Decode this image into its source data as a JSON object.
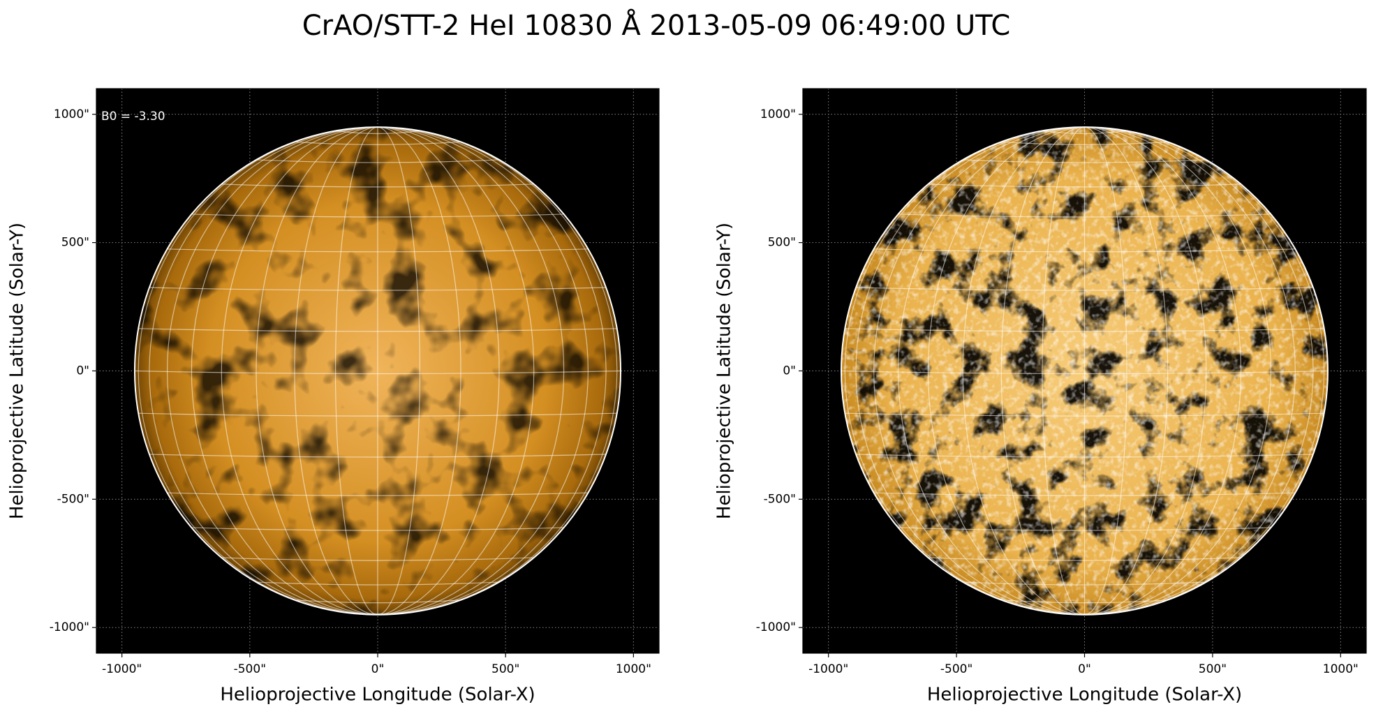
{
  "title": "CrAO/STT-2 HeI 10830 Å 2013-05-09 06:49:00 UTC",
  "chart_data": [
    {
      "type": "image",
      "annotation": "B0 = -3.30",
      "xlabel": "Helioprojective Longitude (Solar-X)",
      "ylabel": "Helioprojective Latitude (Solar-Y)",
      "xlim": [
        -1100,
        1100
      ],
      "ylim": [
        -1100,
        1100
      ],
      "xticks": [
        {
          "value": -1000,
          "label": "-1000\""
        },
        {
          "value": -500,
          "label": "-500\""
        },
        {
          "value": 0,
          "label": "0\""
        },
        {
          "value": 500,
          "label": "500\""
        },
        {
          "value": 1000,
          "label": "1000\""
        }
      ],
      "yticks": [
        {
          "value": -1000,
          "label": "-1000\""
        },
        {
          "value": -500,
          "label": "-500\""
        },
        {
          "value": 0,
          "label": "0\""
        },
        {
          "value": 500,
          "label": "500\""
        },
        {
          "value": 1000,
          "label": "1000\""
        }
      ],
      "grid": true,
      "solar_radius": 950
    },
    {
      "type": "image",
      "xlabel": "Helioprojective Longitude (Solar-X)",
      "ylabel": "Helioprojective Latitude (Solar-Y)",
      "xlim": [
        -1100,
        1100
      ],
      "ylim": [
        -1100,
        1100
      ],
      "xticks": [
        {
          "value": -1000,
          "label": "-1000\""
        },
        {
          "value": -500,
          "label": "-500\""
        },
        {
          "value": 0,
          "label": "0\""
        },
        {
          "value": 500,
          "label": "500\""
        },
        {
          "value": 1000,
          "label": "1000\""
        }
      ],
      "yticks": [
        {
          "value": -1000,
          "label": "-1000\""
        },
        {
          "value": -500,
          "label": "-500\""
        },
        {
          "value": 0,
          "label": "0\""
        },
        {
          "value": 500,
          "label": "500\""
        },
        {
          "value": 1000,
          "label": "1000\""
        }
      ],
      "grid": true,
      "solar_radius": 950
    }
  ]
}
